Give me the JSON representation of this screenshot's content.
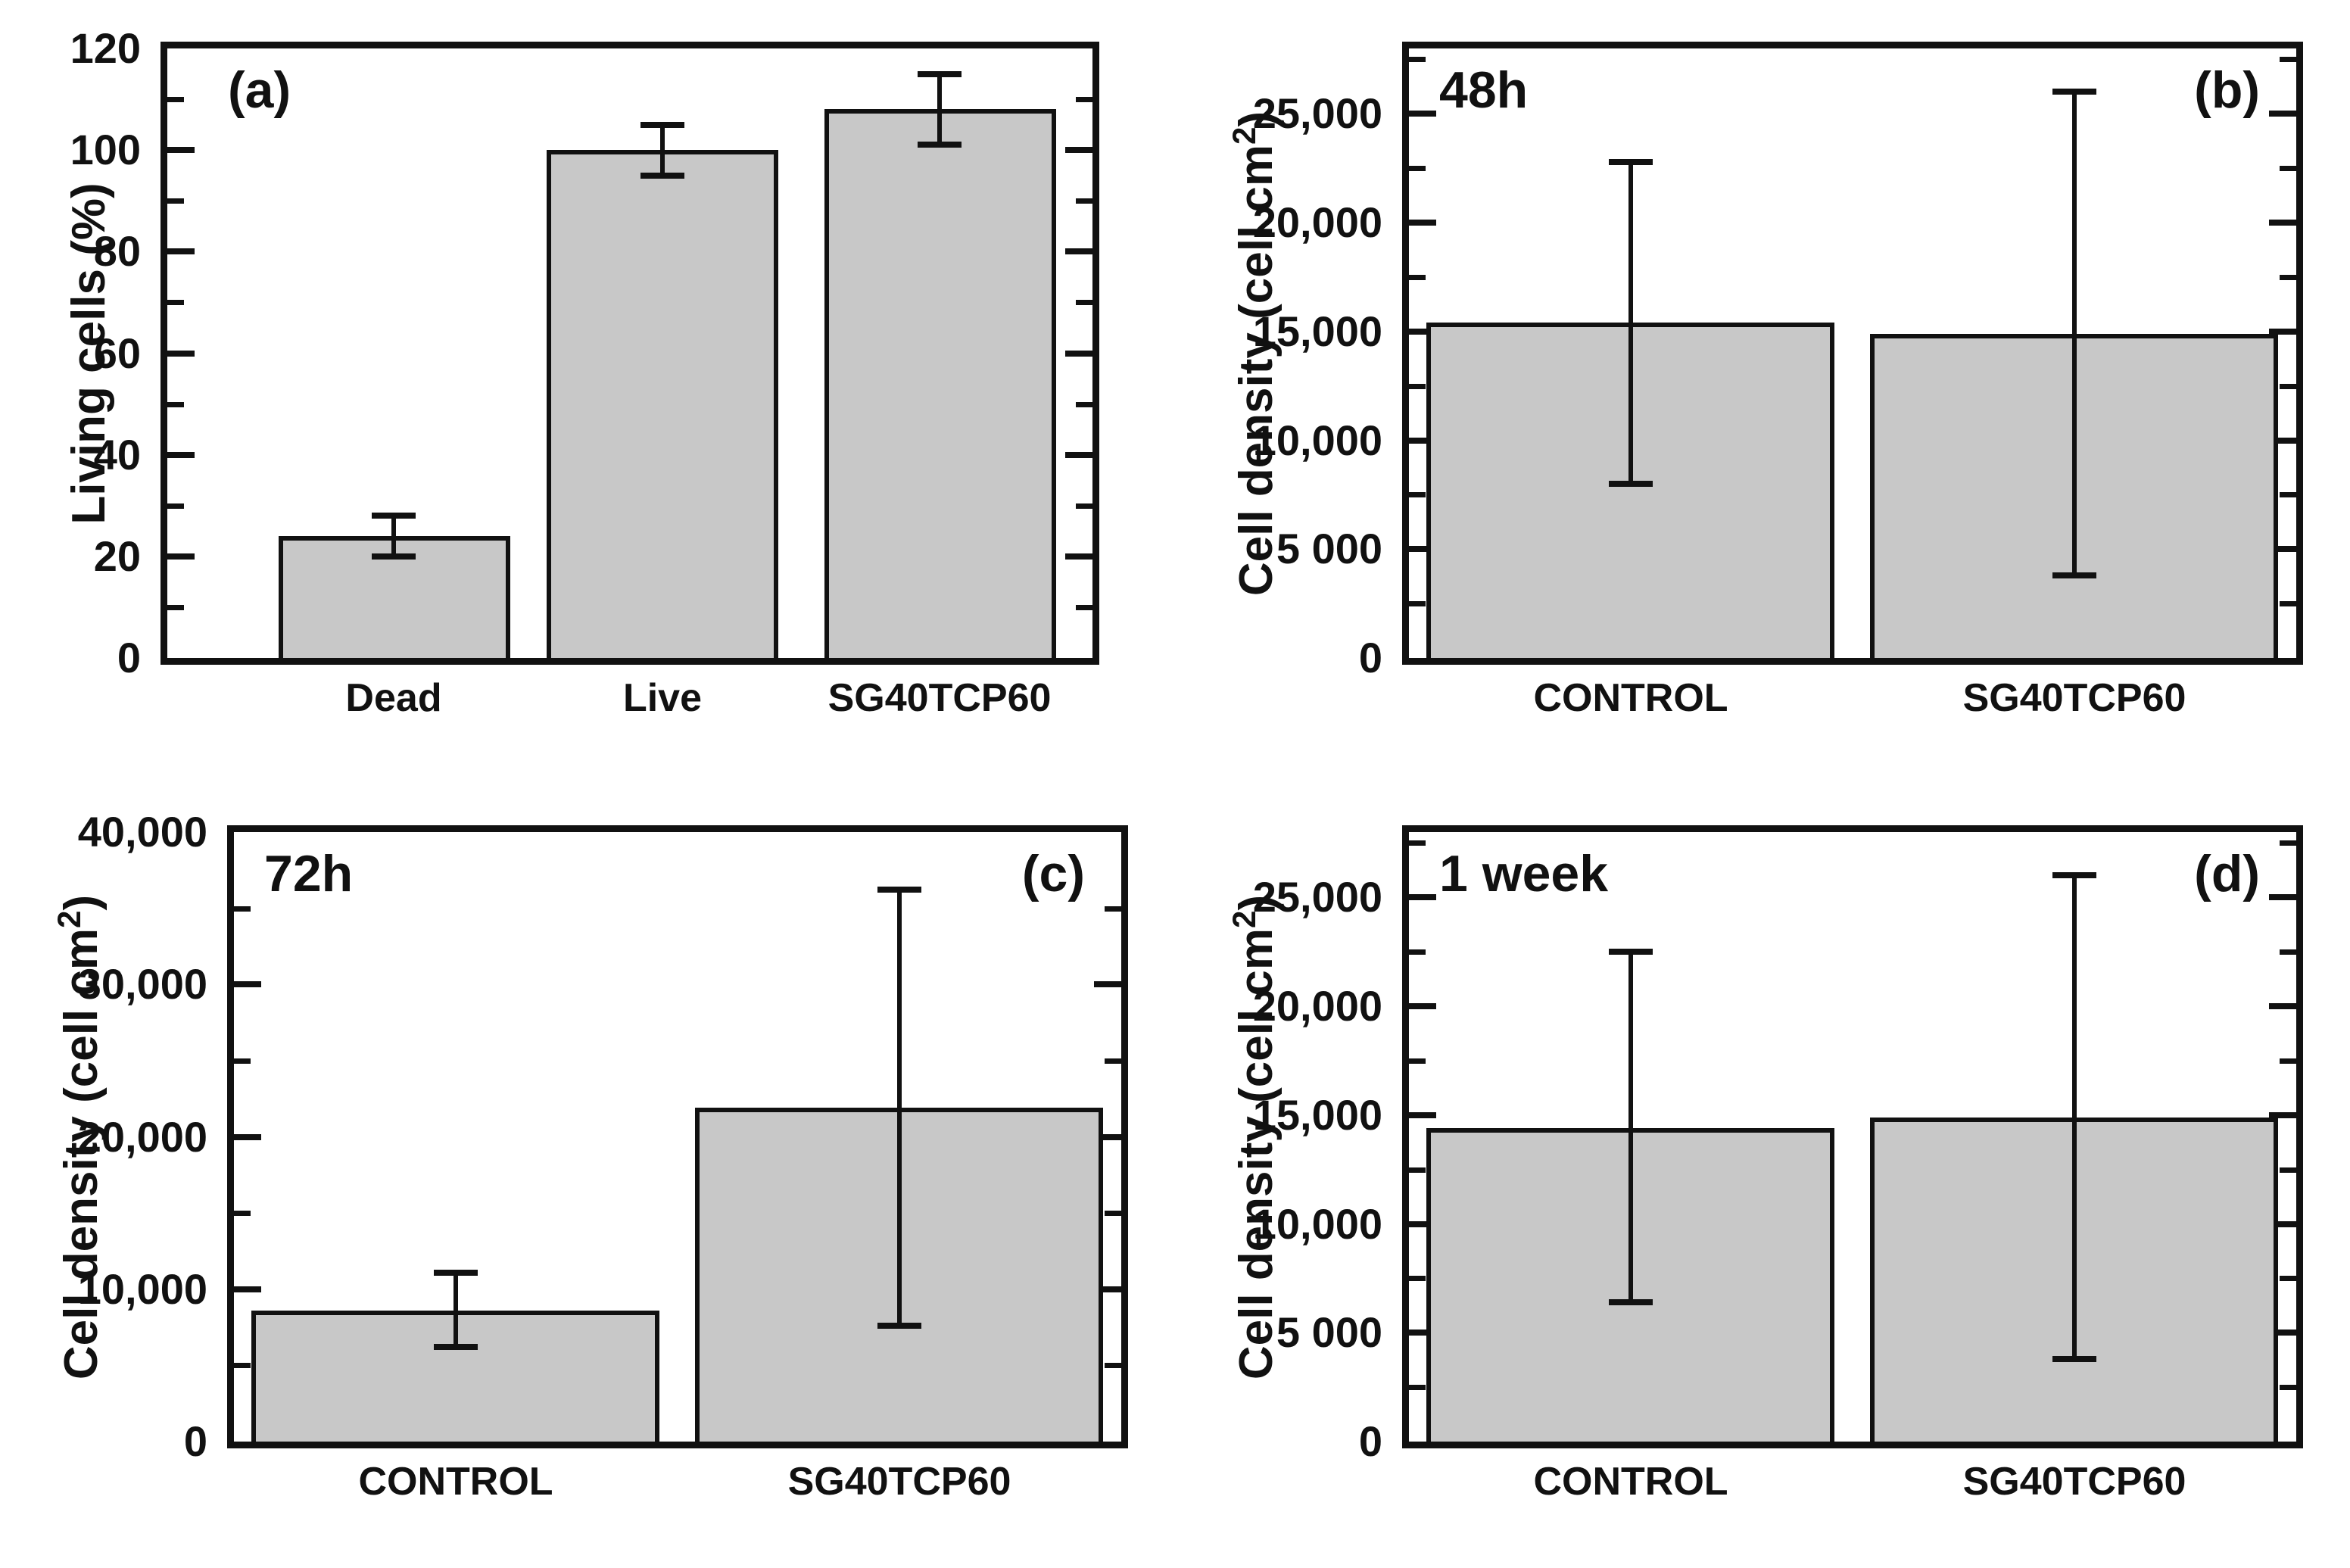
{
  "figure": {
    "background": "#ffffff",
    "bar_fill": "#c8c8c8",
    "line_color": "#111111"
  },
  "chart_data": [
    {
      "type": "bar",
      "panel_letter": "(a)",
      "letter_position": "top-left",
      "corner_label": "",
      "ylabel_prefix": "Living cells (%)",
      "ylabel_sup": "",
      "ylabel_suffix": "",
      "ylim": [
        0,
        120
      ],
      "ymax": 120,
      "grid": false,
      "yticks": [
        {
          "v": 120,
          "label": "120"
        },
        {
          "v": 100,
          "label": "100"
        },
        {
          "v": 80,
          "label": "80"
        },
        {
          "v": 60,
          "label": "60"
        },
        {
          "v": 40,
          "label": "40"
        },
        {
          "v": 20,
          "label": "20"
        },
        {
          "v": 0,
          "label": "0"
        }
      ],
      "minor_ticks": [
        10,
        30,
        50,
        70,
        90,
        110
      ],
      "categories": [
        "Dead",
        "Live",
        "SG40TCP60"
      ],
      "values": [
        24,
        100,
        108
      ],
      "err_low": [
        4,
        5,
        7
      ],
      "err_high": [
        4,
        5,
        7
      ]
    },
    {
      "type": "bar",
      "panel_letter": "(b)",
      "letter_position": "top-right",
      "corner_label": "48h",
      "ylabel_prefix": "Cell density (cell cm",
      "ylabel_sup": "2",
      "ylabel_suffix": ")",
      "ylim": [
        0,
        28000
      ],
      "ymax": 28000,
      "grid": false,
      "yticks": [
        {
          "v": 25000,
          "label": "25,000"
        },
        {
          "v": 20000,
          "label": "20,000"
        },
        {
          "v": 15000,
          "label": "15,000"
        },
        {
          "v": 10000,
          "label": "10,000"
        },
        {
          "v": 5000,
          "label": "5 000"
        },
        {
          "v": 0,
          "label": "0"
        }
      ],
      "minor_ticks": [
        2500,
        7500,
        12500,
        17500,
        22500,
        27500
      ],
      "categories": [
        "CONTROL",
        "SG40TCP60"
      ],
      "values": [
        15400,
        14900
      ],
      "err_low": [
        7400,
        11100
      ],
      "err_high": [
        7400,
        11100
      ]
    },
    {
      "type": "bar",
      "panel_letter": "(c)",
      "letter_position": "top-right",
      "corner_label": "72h",
      "ylabel_prefix": "Cell density (cell cm",
      "ylabel_sup": "2",
      "ylabel_suffix": ")",
      "ylim": [
        0,
        40000
      ],
      "ymax": 40000,
      "grid": false,
      "yticks": [
        {
          "v": 40000,
          "label": "40,000"
        },
        {
          "v": 30000,
          "label": "30,000"
        },
        {
          "v": 20000,
          "label": "20,000"
        },
        {
          "v": 10000,
          "label": "10,000"
        },
        {
          "v": 0,
          "label": "0"
        }
      ],
      "minor_ticks": [
        5000,
        15000,
        25000,
        35000
      ],
      "categories": [
        "CONTROL",
        "SG40TCP60"
      ],
      "values": [
        8600,
        21900
      ],
      "err_low": [
        2400,
        14300
      ],
      "err_high": [
        2500,
        14300
      ]
    },
    {
      "type": "bar",
      "panel_letter": "(d)",
      "letter_position": "top-right",
      "corner_label": "1 week",
      "ylabel_prefix": "Cell density (cell cm",
      "ylabel_sup": "2",
      "ylabel_suffix": ")",
      "ylim": [
        0,
        28000
      ],
      "ymax": 28000,
      "grid": false,
      "yticks": [
        {
          "v": 25000,
          "label": "25,000"
        },
        {
          "v": 20000,
          "label": "20,000"
        },
        {
          "v": 15000,
          "label": "15,000"
        },
        {
          "v": 10000,
          "label": "10,000"
        },
        {
          "v": 5000,
          "label": "5 000"
        },
        {
          "v": 0,
          "label": "0"
        }
      ],
      "minor_ticks": [
        2500,
        7500,
        12500,
        17500,
        22500,
        27500
      ],
      "categories": [
        "CONTROL",
        "SG40TCP60"
      ],
      "values": [
        14400,
        14900
      ],
      "err_low": [
        8000,
        11100
      ],
      "err_high": [
        8100,
        11100
      ]
    }
  ]
}
